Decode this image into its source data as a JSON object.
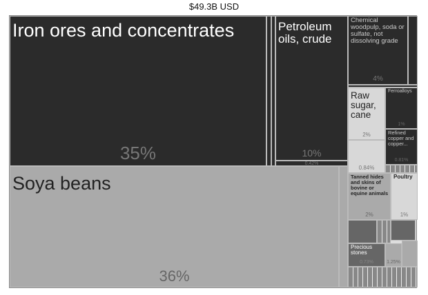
{
  "title": "$49.3B USD",
  "chart_data": {
    "type": "treemap",
    "title": "$49.3B USD",
    "items": [
      {
        "label": "Iron ores and concentrates",
        "share": "35%",
        "color": "#2b2b2b"
      },
      {
        "label": "Soya beans",
        "share": "36%",
        "color": "#aaaaaa"
      },
      {
        "label": "Petroleum oils, crude",
        "share": "10%",
        "color": "#2b2b2b"
      },
      {
        "label": "Chemical woodpulp, soda or sulfate, not dissolving grade",
        "share": "4%",
        "color": "#2b2b2b"
      },
      {
        "label": "Raw sugar, cane",
        "share": "2%",
        "color": "#d8d8d8"
      },
      {
        "label": "Ferroalloys",
        "share": "1%",
        "color": "#2b2b2b"
      },
      {
        "label": "Refined copper and copper...",
        "share": "0.81%",
        "color": "#2b2b2b"
      },
      {
        "label": "Tanned hides and skins of bovine or equine animals",
        "share": "2%",
        "color": "#aaaaaa"
      },
      {
        "label": "Poultry",
        "share": "1%",
        "color": "#d8d8d8"
      },
      {
        "label": "Precious stones",
        "share": "0.73%",
        "color": "#555555"
      },
      {
        "label": "",
        "share": "0.42%",
        "color": "#2b2b2b"
      },
      {
        "label": "",
        "share": "0.84%",
        "color": "#d8d8d8"
      },
      {
        "label": "",
        "share": "1.25%",
        "color": "#aaaaaa"
      }
    ]
  }
}
